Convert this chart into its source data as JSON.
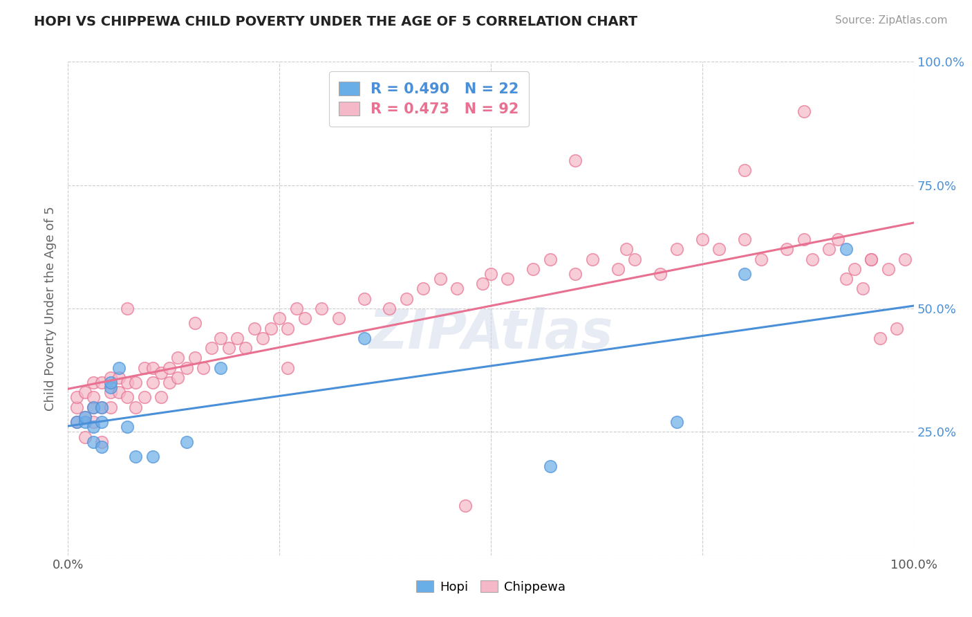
{
  "title": "HOPI VS CHIPPEWA CHILD POVERTY UNDER THE AGE OF 5 CORRELATION CHART",
  "source": "Source: ZipAtlas.com",
  "ylabel": "Child Poverty Under the Age of 5",
  "xlim": [
    0.0,
    1.0
  ],
  "ylim": [
    0.0,
    1.0
  ],
  "xticks": [
    0.0,
    0.25,
    0.5,
    0.75,
    1.0
  ],
  "yticks": [
    0.0,
    0.25,
    0.5,
    0.75,
    1.0
  ],
  "xticklabels": [
    "0.0%",
    "",
    "",
    "",
    "100.0%"
  ],
  "yticklabels_left": [
    "",
    "",
    "",
    "",
    ""
  ],
  "yticklabels_right": [
    "",
    "25.0%",
    "50.0%",
    "75.0%",
    "100.0%"
  ],
  "hopi_color": "#6aaee8",
  "hopi_line_color": "#4a90d9",
  "chippewa_color": "#f4b8c8",
  "chippewa_line_color": "#e87090",
  "hopi_R": 0.49,
  "hopi_N": 22,
  "chippewa_R": 0.473,
  "chippewa_N": 92,
  "background_color": "#ffffff",
  "grid_color": "#cccccc",
  "hopi_x": [
    0.01,
    0.02,
    0.02,
    0.03,
    0.03,
    0.03,
    0.04,
    0.04,
    0.04,
    0.05,
    0.05,
    0.06,
    0.07,
    0.08,
    0.1,
    0.14,
    0.18,
    0.35,
    0.57,
    0.72,
    0.8,
    0.92
  ],
  "hopi_y": [
    0.27,
    0.27,
    0.28,
    0.23,
    0.26,
    0.3,
    0.22,
    0.27,
    0.3,
    0.34,
    0.35,
    0.38,
    0.26,
    0.2,
    0.2,
    0.23,
    0.38,
    0.44,
    0.18,
    0.27,
    0.57,
    0.62
  ],
  "chippewa_x": [
    0.01,
    0.01,
    0.01,
    0.02,
    0.02,
    0.02,
    0.03,
    0.03,
    0.03,
    0.03,
    0.04,
    0.04,
    0.04,
    0.05,
    0.05,
    0.05,
    0.06,
    0.06,
    0.07,
    0.07,
    0.08,
    0.08,
    0.09,
    0.09,
    0.1,
    0.1,
    0.11,
    0.11,
    0.12,
    0.12,
    0.13,
    0.13,
    0.14,
    0.15,
    0.16,
    0.17,
    0.18,
    0.19,
    0.2,
    0.21,
    0.22,
    0.23,
    0.24,
    0.25,
    0.26,
    0.27,
    0.28,
    0.3,
    0.32,
    0.35,
    0.38,
    0.4,
    0.42,
    0.44,
    0.46,
    0.49,
    0.5,
    0.52,
    0.55,
    0.57,
    0.6,
    0.62,
    0.65,
    0.66,
    0.67,
    0.7,
    0.72,
    0.75,
    0.77,
    0.8,
    0.82,
    0.85,
    0.87,
    0.88,
    0.9,
    0.91,
    0.92,
    0.93,
    0.94,
    0.95,
    0.96,
    0.97,
    0.98,
    0.99,
    0.07,
    0.15,
    0.26,
    0.47,
    0.6,
    0.8,
    0.87,
    0.95
  ],
  "chippewa_y": [
    0.27,
    0.3,
    0.32,
    0.24,
    0.28,
    0.33,
    0.27,
    0.3,
    0.32,
    0.35,
    0.23,
    0.3,
    0.35,
    0.3,
    0.33,
    0.36,
    0.33,
    0.36,
    0.32,
    0.35,
    0.3,
    0.35,
    0.32,
    0.38,
    0.35,
    0.38,
    0.32,
    0.37,
    0.35,
    0.38,
    0.36,
    0.4,
    0.38,
    0.4,
    0.38,
    0.42,
    0.44,
    0.42,
    0.44,
    0.42,
    0.46,
    0.44,
    0.46,
    0.48,
    0.46,
    0.5,
    0.48,
    0.5,
    0.48,
    0.52,
    0.5,
    0.52,
    0.54,
    0.56,
    0.54,
    0.55,
    0.57,
    0.56,
    0.58,
    0.6,
    0.57,
    0.6,
    0.58,
    0.62,
    0.6,
    0.57,
    0.62,
    0.64,
    0.62,
    0.64,
    0.6,
    0.62,
    0.64,
    0.6,
    0.62,
    0.64,
    0.56,
    0.58,
    0.54,
    0.6,
    0.44,
    0.58,
    0.46,
    0.6,
    0.5,
    0.47,
    0.38,
    0.1,
    0.8,
    0.78,
    0.9,
    0.6
  ]
}
